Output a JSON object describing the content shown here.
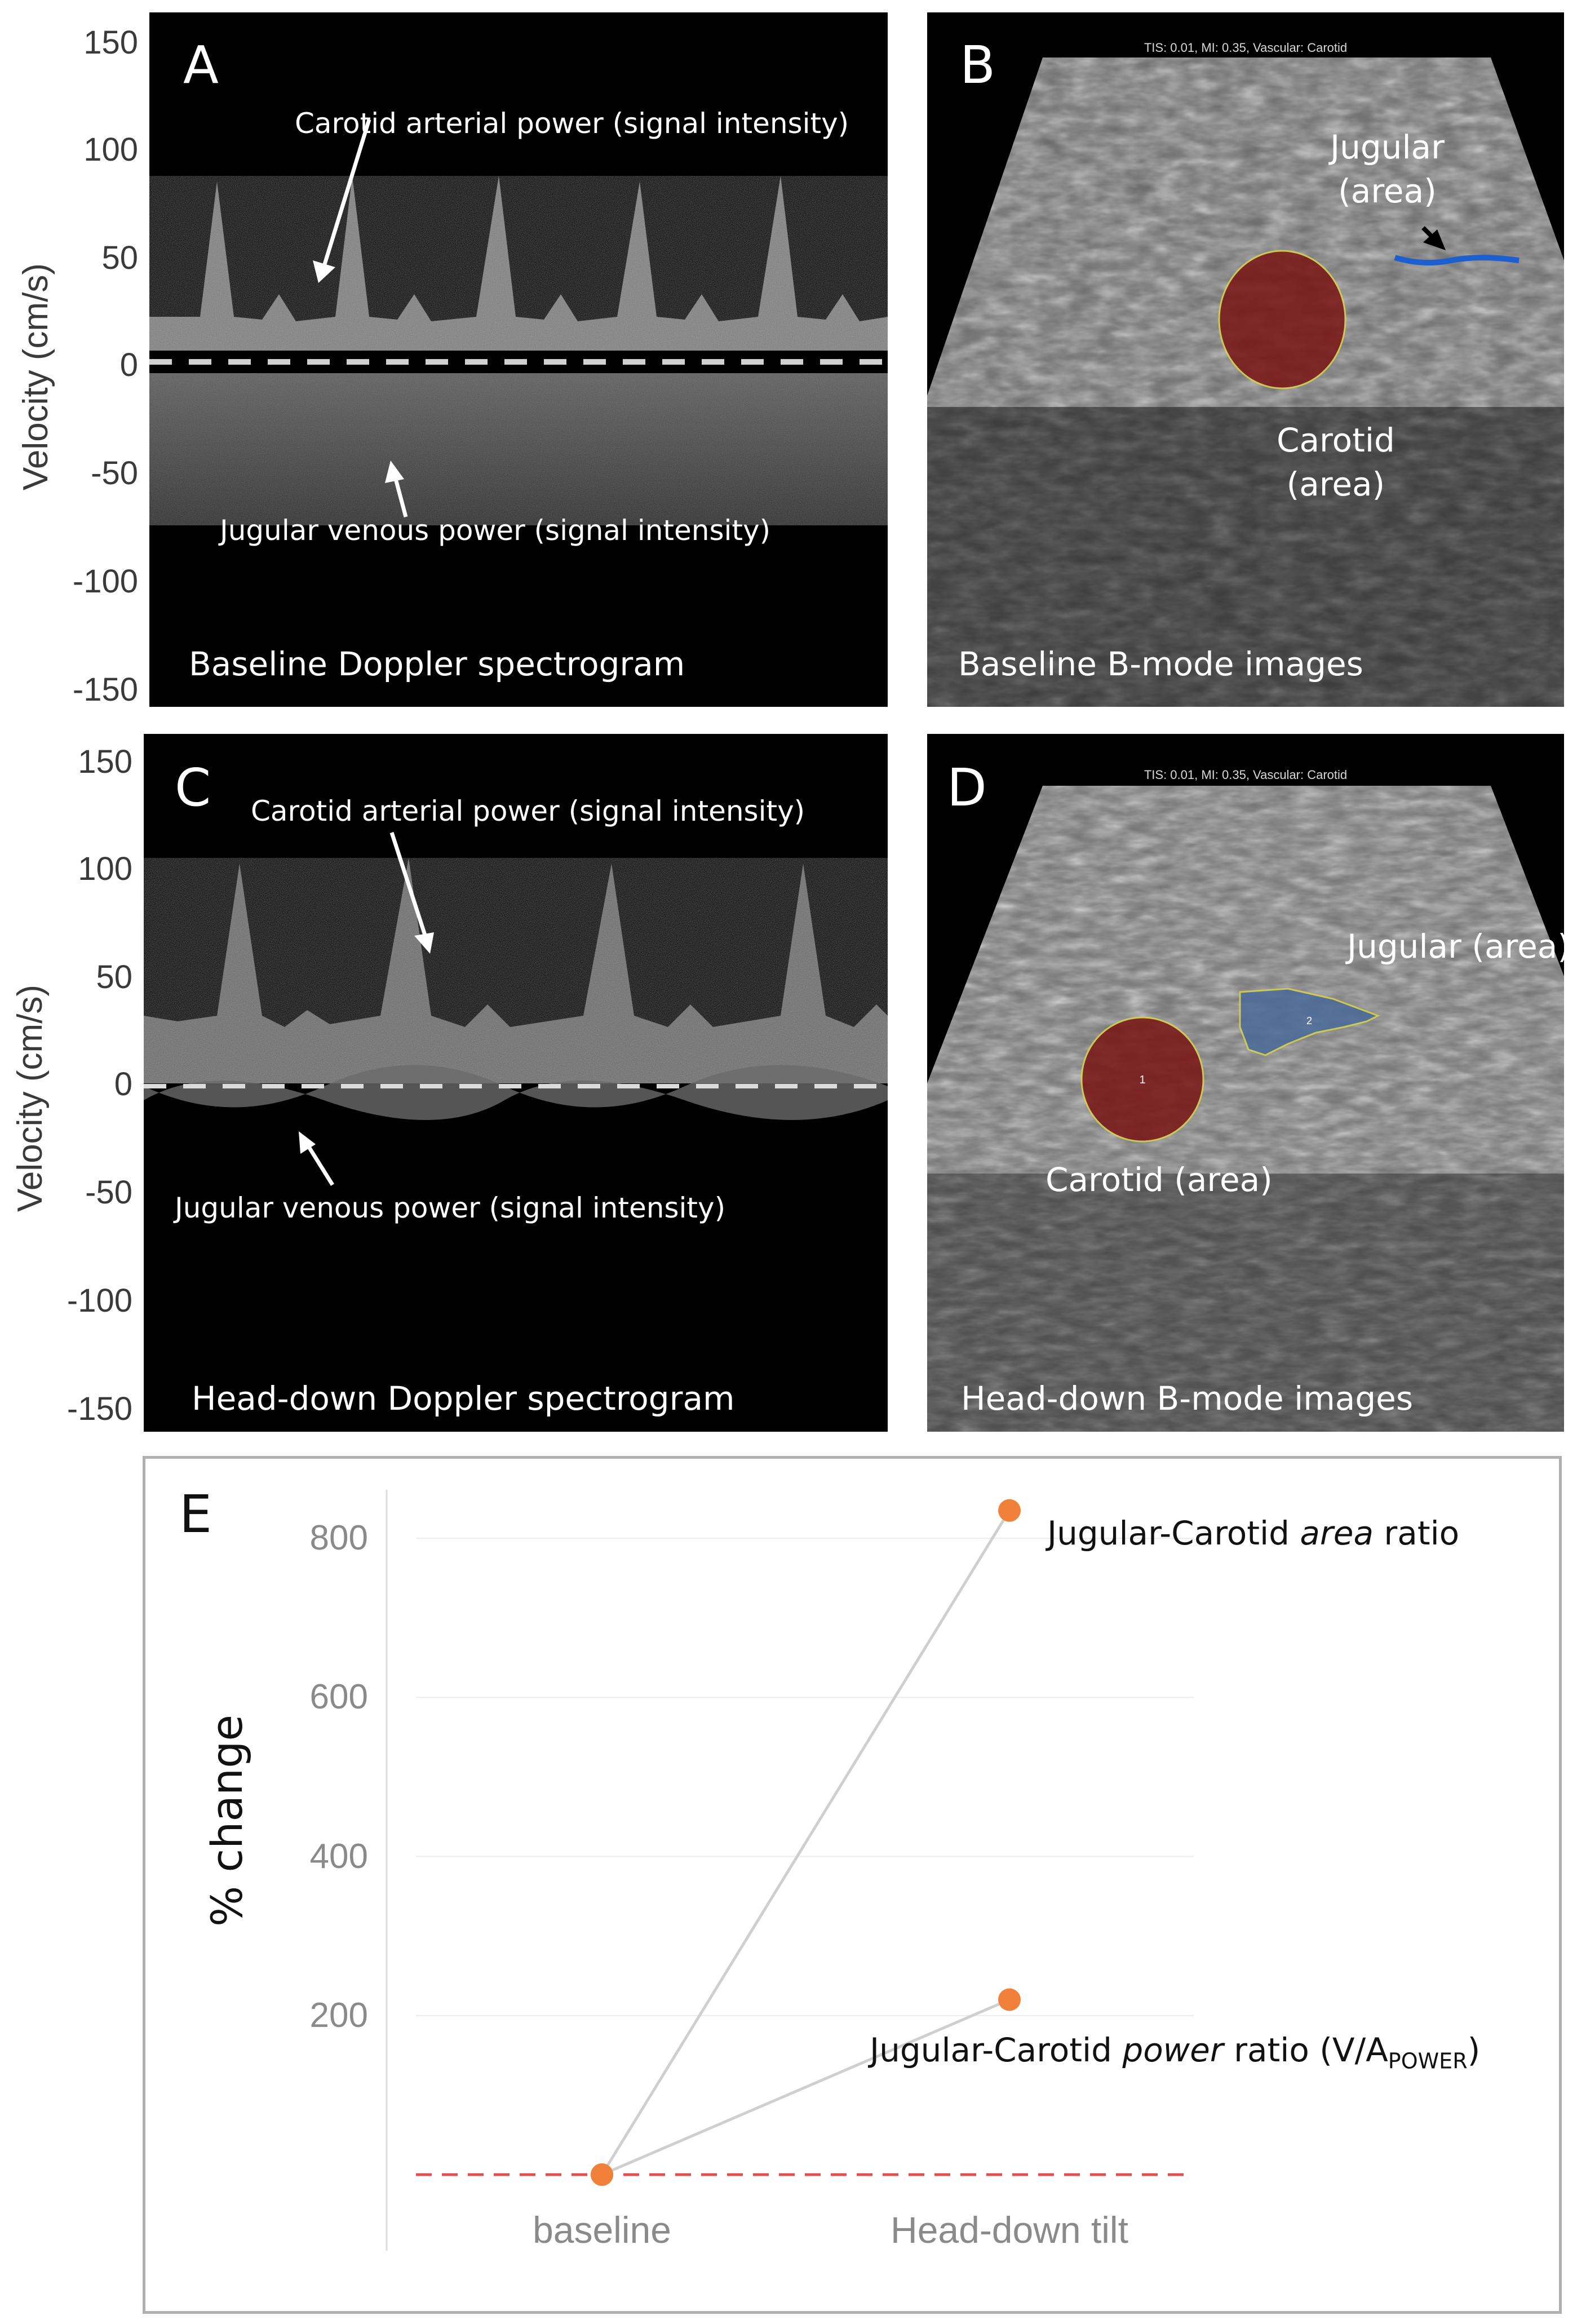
{
  "panels": {
    "a": {
      "letter": "A",
      "caption": "Baseline Doppler spectrogram",
      "arterial_label": "Carotid arterial power (signal intensity)",
      "venous_label": "Jugular venous power (signal intensity)",
      "ylabel": "Velocity (cm/s)",
      "yticks": [
        "150",
        "100",
        "50",
        "0",
        "-50",
        "-100",
        "-150"
      ]
    },
    "b": {
      "letter": "B",
      "caption": "Baseline B-mode images",
      "header": "TIS: 0.01, MI: 0.35, Vascular: Carotid",
      "jugular_label_line1": "Jugular",
      "jugular_label_line2": "(area)",
      "carotid_label_line1": "Carotid",
      "carotid_label_line2": "(area)"
    },
    "c": {
      "letter": "C",
      "caption": "Head-down Doppler spectrogram",
      "arterial_label": "Carotid arterial power (signal intensity)",
      "venous_label": "Jugular venous power (signal intensity)",
      "ylabel": "Velocity (cm/s)",
      "yticks": [
        "150",
        "100",
        "50",
        "0",
        "-50",
        "-100",
        "-150"
      ]
    },
    "d": {
      "letter": "D",
      "caption": "Head-down B-mode images",
      "header": "TIS: 0.01, MI: 0.35, Vascular: Carotid",
      "jugular_label": "Jugular (area)",
      "carotid_label": "Carotid (area)",
      "roi_1": "1",
      "roi_2": "2"
    },
    "e": {
      "letter": "E"
    }
  },
  "colors": {
    "carotid_roi": "#7a1414",
    "jugular_roi": "#4a6a9a",
    "series_point": "#f0803a",
    "baseline_dash": "#e05050"
  },
  "chart_data": {
    "type": "line",
    "ylabel": "% change",
    "categories": [
      "baseline",
      "Head-down tilt"
    ],
    "yticks": [
      200,
      400,
      600,
      800
    ],
    "ylim": [
      0,
      900
    ],
    "grid": true,
    "series": [
      {
        "name": "Jugular-Carotid area ratio",
        "name_prefix": "Jugular-Carotid ",
        "name_em": "area",
        "name_suffix": " ratio",
        "values": [
          0,
          835
        ]
      },
      {
        "name": "Jugular-Carotid power ratio (V/APOWER)",
        "name_prefix": "Jugular-Carotid ",
        "name_em": "power",
        "name_suffix": " ratio (V/A",
        "name_sub": "POWER",
        "name_end": ")",
        "values": [
          0,
          220
        ]
      }
    ],
    "reference_line": 0
  }
}
